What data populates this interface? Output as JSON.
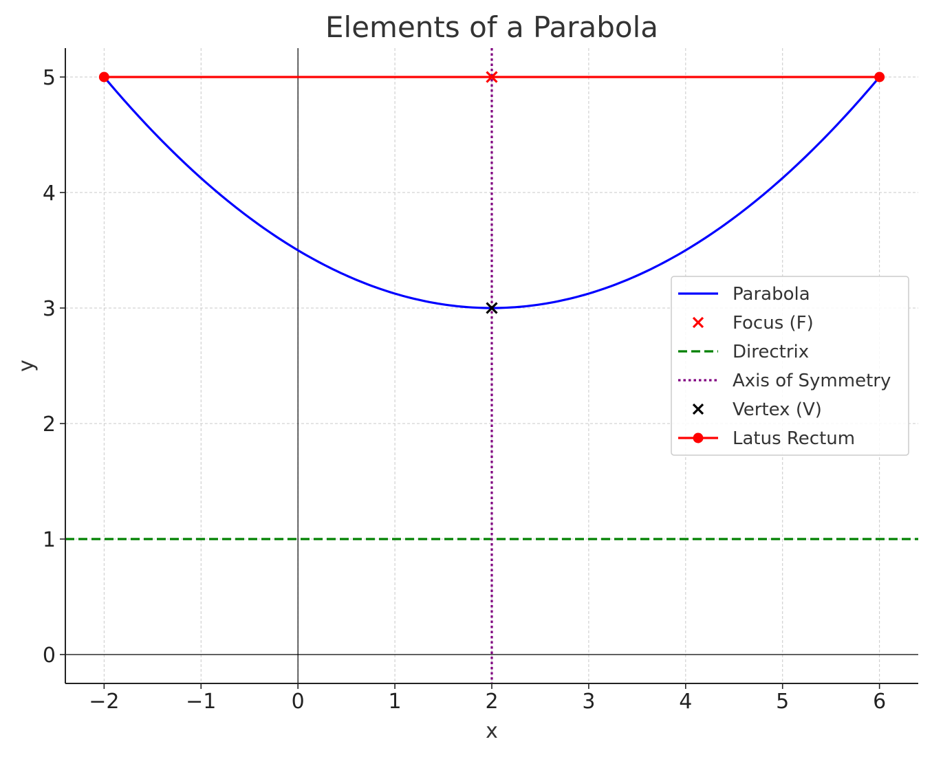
{
  "chart_data": {
    "type": "line",
    "title": "Elements of a Parabola",
    "xlabel": "x",
    "ylabel": "y",
    "xlim": [
      -2.4,
      6.4
    ],
    "ylim": [
      -0.25,
      5.25
    ],
    "xticks": [
      -2,
      -1,
      0,
      1,
      2,
      3,
      4,
      5,
      6
    ],
    "xtick_labels": [
      "−2",
      "−1",
      "0",
      "1",
      "2",
      "3",
      "4",
      "5",
      "6"
    ],
    "yticks": [
      0,
      1,
      2,
      3,
      4,
      5
    ],
    "ytick_labels": [
      "0",
      "1",
      "2",
      "3",
      "4",
      "5"
    ],
    "grid": true,
    "legend_position": "center-right",
    "series": [
      {
        "name": "Parabola",
        "kind": "curve",
        "color": "#0000ff",
        "equation": "y = (x - 2)^2 / 8 + 3",
        "x_range": [
          -2,
          6
        ]
      },
      {
        "name": "Focus (F)",
        "kind": "marker-x",
        "color": "#ff0000",
        "x": [
          2
        ],
        "y": [
          5
        ]
      },
      {
        "name": "Directrix",
        "kind": "hline-dashed",
        "color": "#008000",
        "y": 1
      },
      {
        "name": "Axis of Symmetry",
        "kind": "vline-dotted",
        "color": "#800080",
        "x": 2
      },
      {
        "name": "Vertex (V)",
        "kind": "marker-x",
        "color": "#000000",
        "x": [
          2
        ],
        "y": [
          3
        ]
      },
      {
        "name": "Latus Rectum",
        "kind": "line-markers",
        "color": "#ff0000",
        "x": [
          -2,
          6
        ],
        "y": [
          5,
          5
        ]
      }
    ],
    "reference_lines": {
      "x_axis_y": 0,
      "y_axis_x": 0,
      "color": "#000000"
    }
  }
}
